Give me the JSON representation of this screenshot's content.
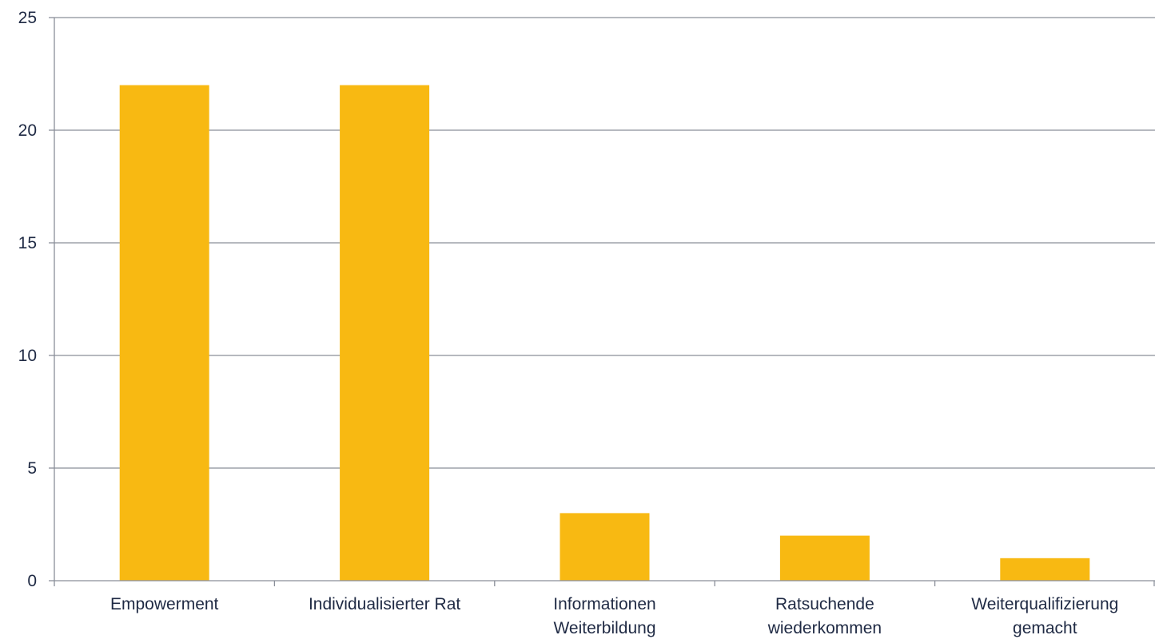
{
  "chart_data": {
    "type": "bar",
    "categories": [
      [
        "Empowerment"
      ],
      [
        "Individualisierter Rat"
      ],
      [
        "Informationen",
        "Weiterbildung"
      ],
      [
        "Ratsuchende",
        "wiederkommen"
      ],
      [
        "Weiterqualifizierung",
        "gemacht"
      ]
    ],
    "values": [
      22,
      22,
      3,
      2,
      1
    ],
    "title": "",
    "xlabel": "",
    "ylabel": "",
    "ylim": [
      0,
      25
    ],
    "yticks": [
      "0",
      "5",
      "10",
      "15",
      "20",
      "25"
    ],
    "grid": true,
    "legend": "none",
    "bar_color": "#F8B912",
    "grid_color": "#8a8f99",
    "axis_color": "#8a8f99",
    "text_color": "#1f2a44"
  }
}
